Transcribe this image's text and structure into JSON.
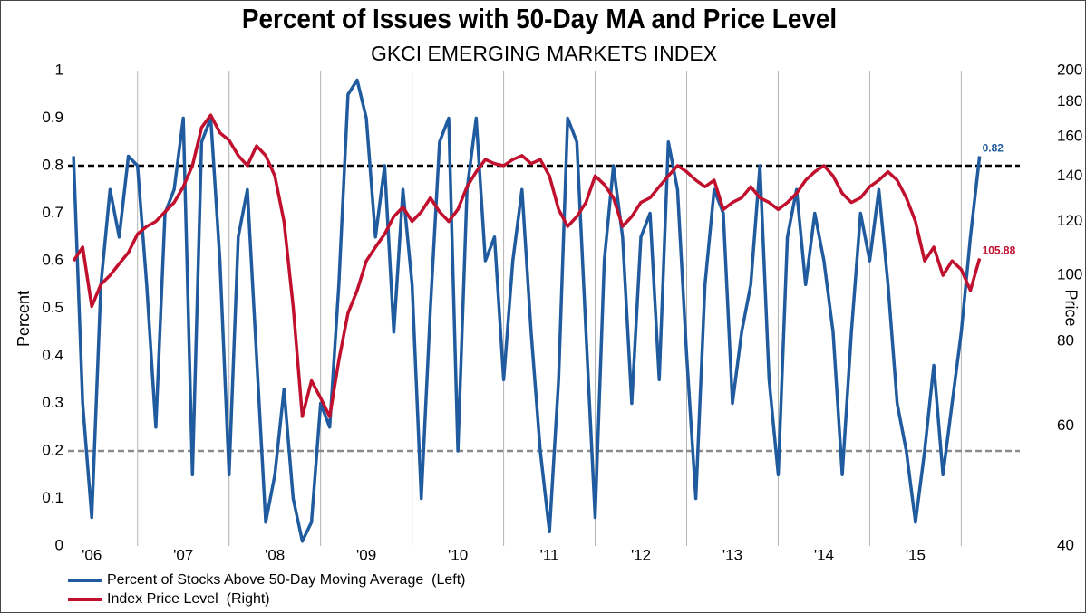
{
  "chart_data": {
    "type": "line",
    "title": "Percent of Issues with 50-Day MA and Price Level",
    "subtitle": "GKCI EMERGING MARKETS INDEX",
    "ylabel": "Percent",
    "y2label": "Price",
    "x": [
      2006.3,
      2006.4,
      2006.5,
      2006.6,
      2006.7,
      2006.8,
      2006.9,
      2007.0,
      2007.1,
      2007.2,
      2007.3,
      2007.4,
      2007.5,
      2007.6,
      2007.7,
      2007.8,
      2007.9,
      2008.0,
      2008.1,
      2008.2,
      2008.3,
      2008.4,
      2008.5,
      2008.6,
      2008.7,
      2008.8,
      2008.9,
      2009.0,
      2009.1,
      2009.2,
      2009.3,
      2009.4,
      2009.5,
      2009.6,
      2009.7,
      2009.8,
      2009.9,
      2010.0,
      2010.1,
      2010.2,
      2010.3,
      2010.4,
      2010.5,
      2010.6,
      2010.7,
      2010.8,
      2010.9,
      2011.0,
      2011.1,
      2011.2,
      2011.3,
      2011.4,
      2011.5,
      2011.6,
      2011.7,
      2011.8,
      2011.9,
      2012.0,
      2012.1,
      2012.2,
      2012.3,
      2012.4,
      2012.5,
      2012.6,
      2012.7,
      2012.8,
      2012.9,
      2013.0,
      2013.1,
      2013.2,
      2013.3,
      2013.4,
      2013.5,
      2013.6,
      2013.7,
      2013.8,
      2013.9,
      2014.0,
      2014.1,
      2014.2,
      2014.3,
      2014.4,
      2014.5,
      2014.6,
      2014.7,
      2014.8,
      2014.9,
      2015.0,
      2015.1,
      2015.2,
      2015.3,
      2015.4,
      2015.5,
      2015.6,
      2015.7,
      2015.8,
      2015.9,
      2016.0,
      2016.1,
      2016.2
    ],
    "series": [
      {
        "name": "Percent of Stocks Above 50-Day Moving Average  (Left)",
        "color": "#1f5b9e",
        "axis": "y",
        "end_label": "0.82",
        "values": [
          0.82,
          0.3,
          0.06,
          0.55,
          0.75,
          0.65,
          0.82,
          0.8,
          0.55,
          0.25,
          0.7,
          0.75,
          0.9,
          0.15,
          0.85,
          0.9,
          0.6,
          0.15,
          0.65,
          0.75,
          0.4,
          0.05,
          0.15,
          0.33,
          0.1,
          0.01,
          0.05,
          0.3,
          0.25,
          0.55,
          0.95,
          0.98,
          0.9,
          0.65,
          0.8,
          0.45,
          0.75,
          0.55,
          0.1,
          0.5,
          0.85,
          0.9,
          0.2,
          0.75,
          0.9,
          0.6,
          0.65,
          0.35,
          0.6,
          0.75,
          0.45,
          0.2,
          0.03,
          0.35,
          0.9,
          0.85,
          0.45,
          0.06,
          0.6,
          0.8,
          0.65,
          0.3,
          0.65,
          0.7,
          0.35,
          0.85,
          0.75,
          0.4,
          0.1,
          0.55,
          0.75,
          0.7,
          0.3,
          0.45,
          0.55,
          0.8,
          0.35,
          0.15,
          0.65,
          0.75,
          0.55,
          0.7,
          0.6,
          0.45,
          0.15,
          0.45,
          0.7,
          0.6,
          0.75,
          0.55,
          0.3,
          0.2,
          0.05,
          0.2,
          0.38,
          0.15,
          0.3,
          0.45,
          0.65,
          0.82
        ]
      },
      {
        "name": "Index Price Level  (Right)",
        "color": "#c0102e",
        "axis": "y2",
        "end_label": "105.88",
        "values": [
          105,
          110,
          90,
          97,
          100,
          104,
          108,
          115,
          118,
          120,
          124,
          128,
          135,
          145,
          165,
          172,
          162,
          158,
          150,
          145,
          155,
          150,
          140,
          120,
          90,
          62,
          70,
          66,
          62,
          75,
          88,
          95,
          105,
          110,
          115,
          122,
          126,
          120,
          124,
          130,
          124,
          120,
          125,
          135,
          142,
          148,
          146,
          145,
          148,
          150,
          146,
          148,
          140,
          125,
          118,
          122,
          128,
          140,
          136,
          130,
          118,
          122,
          128,
          130,
          135,
          140,
          145,
          142,
          138,
          135,
          138,
          125,
          128,
          130,
          135,
          130,
          128,
          125,
          128,
          132,
          138,
          142,
          145,
          140,
          132,
          128,
          130,
          135,
          138,
          142,
          138,
          130,
          120,
          105,
          110,
          100,
          105,
          102,
          95,
          105.88
        ]
      }
    ],
    "xlim": [
      2006.24,
      2016.64
    ],
    "xticks": [
      {
        "value": 2006.5,
        "label": "'06"
      },
      {
        "value": 2007.5,
        "label": "'07"
      },
      {
        "value": 2008.5,
        "label": "'08"
      },
      {
        "value": 2009.5,
        "label": "'09"
      },
      {
        "value": 2010.5,
        "label": "'10"
      },
      {
        "value": 2011.5,
        "label": "'11"
      },
      {
        "value": 2012.5,
        "label": "'12"
      },
      {
        "value": 2013.5,
        "label": "'13"
      },
      {
        "value": 2014.5,
        "label": "'14"
      },
      {
        "value": 2015.5,
        "label": "'15"
      }
    ],
    "xgrid": [
      2007,
      2008,
      2009,
      2010,
      2011,
      2012,
      2013,
      2014,
      2015,
      2016
    ],
    "ylim": [
      0,
      1
    ],
    "yticks": [
      0,
      0.1,
      0.2,
      0.3,
      0.4,
      0.5,
      0.6,
      0.7,
      0.8,
      0.9,
      1
    ],
    "y2lim": [
      40,
      200
    ],
    "y2ticks": [
      40,
      60,
      80,
      100,
      120,
      140,
      160,
      180,
      200
    ],
    "y2log": true,
    "reference_lines": [
      {
        "value": 0.8,
        "color": "#000000"
      },
      {
        "value": 0.2,
        "color": "#8c8c8c"
      }
    ]
  }
}
